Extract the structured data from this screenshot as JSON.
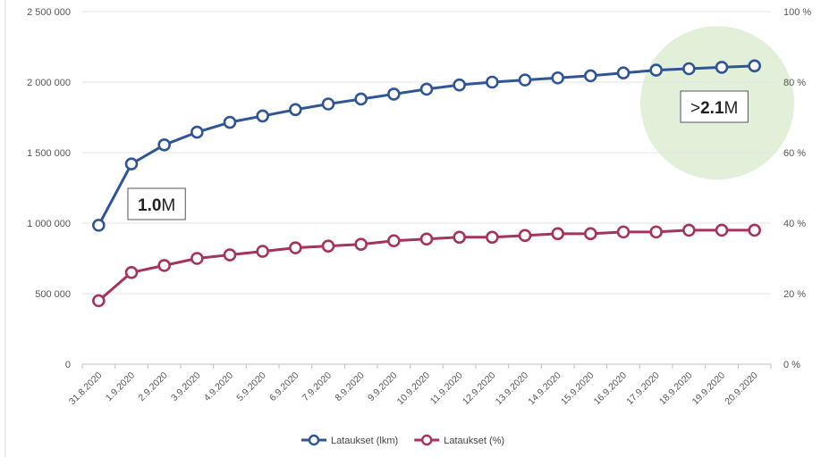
{
  "chart_data": {
    "type": "line",
    "categories": [
      "31.8.2020",
      "1.9.2020",
      "2.9.2020",
      "3.9.2020",
      "4.9.2020",
      "5.9.2020",
      "6.9.2020",
      "7.9.2020",
      "8.9.2020",
      "9.9.2020",
      "10.9.2020",
      "11.9.2020",
      "12.9.2020",
      "13.9.2020",
      "14.9.2020",
      "15.9.2020",
      "16.9.2020",
      "17.9.2020",
      "18.9.2020",
      "19.9.2020",
      "20.9.2020"
    ],
    "series": [
      {
        "name": "Lataukset (lkm)",
        "axis": "left",
        "color": "#2f5597",
        "values": [
          985000,
          1420000,
          1555000,
          1645000,
          1715000,
          1760000,
          1805000,
          1845000,
          1880000,
          1915000,
          1950000,
          1980000,
          2000000,
          2015000,
          2030000,
          2045000,
          2065000,
          2085000,
          2095000,
          2105000,
          2115000
        ]
      },
      {
        "name": "Lataukset (%)",
        "axis": "right",
        "color": "#a5325f",
        "values": [
          18,
          26,
          28,
          30,
          31,
          32,
          33,
          33.5,
          34,
          35,
          35.5,
          36,
          36,
          36.5,
          37,
          37,
          37.5,
          37.5,
          38,
          38,
          38
        ]
      }
    ],
    "y_left": {
      "min": 0,
      "max": 2500000,
      "ticks": [
        "0",
        "500 000",
        "1 000 000",
        "1 500 000",
        "2 000 000",
        "2 500 000"
      ],
      "tick_values": [
        0,
        500000,
        1000000,
        1500000,
        2000000,
        2500000
      ]
    },
    "y_right": {
      "min": 0,
      "max": 100,
      "ticks": [
        "0 %",
        "20 %",
        "40 %",
        "60 %",
        "80 %",
        "100 %"
      ],
      "tick_values": [
        0,
        20,
        40,
        60,
        80,
        100
      ]
    },
    "grid": true,
    "legend_position": "bottom",
    "annotations": [
      {
        "bold": "1.0",
        "suffix": "M",
        "prefix": "",
        "near_category_index": 1,
        "near_value": 1000000
      },
      {
        "bold": "2.1",
        "suffix": "M",
        "prefix": ">",
        "near_category_index": 19,
        "near_value": 1840000
      }
    ],
    "highlight": {
      "shape": "circle",
      "color": "#e2efd9",
      "near_category_index": 19,
      "near_value": 1840000
    }
  }
}
